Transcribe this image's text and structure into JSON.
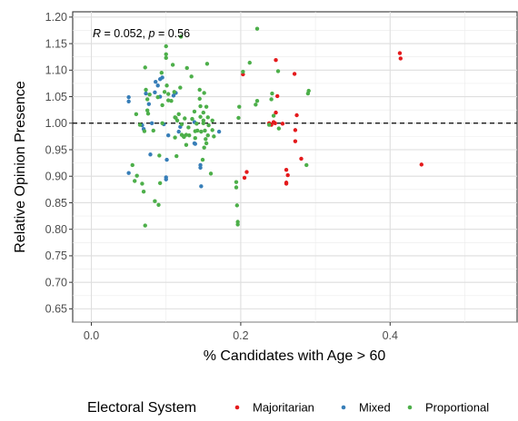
{
  "chart_data": {
    "type": "scatter",
    "xlabel": "% Candidates with Age > 60",
    "ylabel": "Relative Opinion Presence",
    "xlim": [
      -0.025,
      0.57
    ],
    "ylim": [
      0.625,
      1.21
    ],
    "x_ticks": [
      0.0,
      0.2,
      0.4
    ],
    "x_tick_labels": [
      "0.0",
      "0.2",
      "0.4"
    ],
    "y_ticks": [
      0.65,
      0.7,
      0.75,
      0.8,
      0.85,
      0.9,
      0.95,
      1.0,
      1.05,
      1.1,
      1.15,
      1.2
    ],
    "y_tick_labels": [
      "0.65",
      "0.70",
      "0.75",
      "0.80",
      "0.85",
      "0.90",
      "0.95",
      "1.00",
      "1.05",
      "1.10",
      "1.15",
      "1.20"
    ],
    "grid": true,
    "reference_line": {
      "y": 1.0,
      "style": "dashed"
    },
    "annotation": {
      "r_label": "R",
      "r_value": " = 0.052, ",
      "p_label": "p",
      "p_value": " = 0.56"
    },
    "legend": {
      "title": "Electoral System",
      "position": "bottom",
      "entries": [
        "Majoritarian",
        "Mixed",
        "Proportional"
      ]
    },
    "colors": {
      "Majoritarian": "#e41a1c",
      "Mixed": "#377eb8",
      "Proportional": "#4daf4a"
    },
    "series": [
      {
        "name": "Majoritarian",
        "points": [
          [
            0.203,
            1.092
          ],
          [
            0.205,
            0.897
          ],
          [
            0.208,
            0.908
          ],
          [
            0.238,
            1.0
          ],
          [
            0.241,
            0.997
          ],
          [
            0.244,
            1.002
          ],
          [
            0.246,
            1.0
          ],
          [
            0.247,
            1.02
          ],
          [
            0.247,
            1.119
          ],
          [
            0.249,
            1.051
          ],
          [
            0.256,
            0.999
          ],
          [
            0.261,
            0.912
          ],
          [
            0.261,
            0.888
          ],
          [
            0.261,
            0.886
          ],
          [
            0.263,
            0.902
          ],
          [
            0.272,
            1.093
          ],
          [
            0.273,
            0.966
          ],
          [
            0.273,
            0.987
          ],
          [
            0.275,
            1.015
          ],
          [
            0.281,
            0.933
          ],
          [
            0.413,
            1.132
          ],
          [
            0.414,
            1.122
          ],
          [
            0.442,
            0.922
          ]
        ]
      },
      {
        "name": "Mixed",
        "points": [
          [
            0.05,
            1.049
          ],
          [
            0.05,
            1.041
          ],
          [
            0.05,
            0.906
          ],
          [
            0.068,
            0.996
          ],
          [
            0.07,
            0.989
          ],
          [
            0.073,
            1.056
          ],
          [
            0.077,
            1.036
          ],
          [
            0.079,
            0.941
          ],
          [
            0.081,
            1.0
          ],
          [
            0.085,
            1.058
          ],
          [
            0.086,
            1.078
          ],
          [
            0.089,
            1.071
          ],
          [
            0.092,
            1.05
          ],
          [
            0.092,
            1.083
          ],
          [
            0.095,
            1.086
          ],
          [
            0.097,
            0.998
          ],
          [
            0.1,
            0.898
          ],
          [
            0.1,
            0.894
          ],
          [
            0.101,
            0.931
          ],
          [
            0.103,
            0.977
          ],
          [
            0.11,
            1.052
          ],
          [
            0.113,
            1.057
          ],
          [
            0.117,
            0.984
          ],
          [
            0.119,
            0.993
          ],
          [
            0.138,
            1.002
          ],
          [
            0.138,
            0.962
          ],
          [
            0.139,
            0.961
          ],
          [
            0.146,
            0.921
          ],
          [
            0.146,
            0.916
          ],
          [
            0.147,
            0.881
          ],
          [
            0.171,
            0.984
          ]
        ]
      },
      {
        "name": "Proportional",
        "points": [
          [
            0.055,
            0.921
          ],
          [
            0.058,
            0.891
          ],
          [
            0.06,
            1.017
          ],
          [
            0.061,
            0.901
          ],
          [
            0.065,
            0.997
          ],
          [
            0.068,
            0.886
          ],
          [
            0.07,
            0.871
          ],
          [
            0.071,
            0.985
          ],
          [
            0.072,
            0.807
          ],
          [
            0.072,
            1.105
          ],
          [
            0.073,
            1.063
          ],
          [
            0.075,
            1.045
          ],
          [
            0.075,
            1.024
          ],
          [
            0.076,
            1.018
          ],
          [
            0.078,
            1.054
          ],
          [
            0.083,
            0.986
          ],
          [
            0.085,
            0.853
          ],
          [
            0.089,
            1.049
          ],
          [
            0.09,
            0.846
          ],
          [
            0.091,
            0.939
          ],
          [
            0.092,
            0.887
          ],
          [
            0.094,
            1.095
          ],
          [
            0.095,
            1.034
          ],
          [
            0.095,
            1.0
          ],
          [
            0.098,
            1.059
          ],
          [
            0.1,
            1.145
          ],
          [
            0.1,
            1.13
          ],
          [
            0.1,
            1.123
          ],
          [
            0.101,
            1.071
          ],
          [
            0.103,
            1.055
          ],
          [
            0.103,
            1.043
          ],
          [
            0.107,
            1.042
          ],
          [
            0.109,
            1.11
          ],
          [
            0.111,
            1.059
          ],
          [
            0.112,
            0.973
          ],
          [
            0.112,
            1.011
          ],
          [
            0.113,
            1.01
          ],
          [
            0.114,
            0.938
          ],
          [
            0.115,
            1.005
          ],
          [
            0.117,
            1.017
          ],
          [
            0.119,
            1.067
          ],
          [
            0.12,
            1.163
          ],
          [
            0.121,
            0.998
          ],
          [
            0.121,
            0.978
          ],
          [
            0.123,
            0.976
          ],
          [
            0.124,
            0.974
          ],
          [
            0.125,
            1.009
          ],
          [
            0.127,
            0.978
          ],
          [
            0.127,
            0.959
          ],
          [
            0.128,
            1.104
          ],
          [
            0.13,
            0.992
          ],
          [
            0.131,
            0.977
          ],
          [
            0.134,
            1.088
          ],
          [
            0.135,
            1.008
          ],
          [
            0.138,
            1.022
          ],
          [
            0.139,
            0.985
          ],
          [
            0.139,
            0.972
          ],
          [
            0.141,
            0.999
          ],
          [
            0.142,
            0.986
          ],
          [
            0.145,
            1.046
          ],
          [
            0.145,
            1.063
          ],
          [
            0.146,
            1.032
          ],
          [
            0.146,
            1.012
          ],
          [
            0.147,
            0.984
          ],
          [
            0.149,
            0.931
          ],
          [
            0.15,
            1.02
          ],
          [
            0.15,
            1.005
          ],
          [
            0.15,
            1.0
          ],
          [
            0.151,
            1.057
          ],
          [
            0.151,
            0.954
          ],
          [
            0.152,
            0.986
          ],
          [
            0.153,
            0.97
          ],
          [
            0.154,
            0.962
          ],
          [
            0.154,
            1.031
          ],
          [
            0.155,
            1.112
          ],
          [
            0.156,
            1.011
          ],
          [
            0.156,
            0.977
          ],
          [
            0.157,
            0.996
          ],
          [
            0.16,
            0.905
          ],
          [
            0.162,
            1.005
          ],
          [
            0.162,
            0.987
          ],
          [
            0.164,
            0.975
          ],
          [
            0.194,
            0.889
          ],
          [
            0.194,
            0.879
          ],
          [
            0.195,
            0.845
          ],
          [
            0.196,
            0.814
          ],
          [
            0.196,
            0.809
          ],
          [
            0.197,
            1.01
          ],
          [
            0.198,
            1.031
          ],
          [
            0.203,
            1.097
          ],
          [
            0.212,
            1.114
          ],
          [
            0.22,
            1.035
          ],
          [
            0.222,
            1.178
          ],
          [
            0.222,
            1.042
          ],
          [
            0.238,
            0.997
          ],
          [
            0.241,
            1.045
          ],
          [
            0.242,
            1.056
          ],
          [
            0.244,
            1.014
          ],
          [
            0.25,
            1.098
          ],
          [
            0.251,
            0.99
          ],
          [
            0.288,
            0.921
          ],
          [
            0.29,
            1.056
          ],
          [
            0.291,
            1.061
          ]
        ]
      }
    ]
  }
}
